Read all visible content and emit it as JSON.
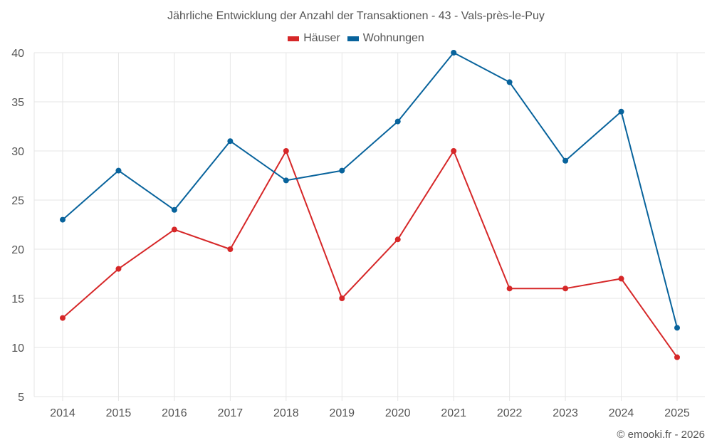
{
  "title": "Jährliche Entwicklung der Anzahl der Transaktionen - 43 - Vals-près-le-Puy",
  "legend": [
    {
      "label": "Häuser",
      "color": "#d62728"
    },
    {
      "label": "Wohnungen",
      "color": "#08639c"
    }
  ],
  "credit": "© emooki.fr - 2026",
  "chart_data": {
    "type": "line",
    "title": "Jährliche Entwicklung der Anzahl der Transaktionen - 43 - Vals-près-le-Puy",
    "xlabel": "",
    "ylabel": "",
    "categories": [
      "2014",
      "2015",
      "2016",
      "2017",
      "2018",
      "2019",
      "2020",
      "2021",
      "2022",
      "2023",
      "2024",
      "2025"
    ],
    "series": [
      {
        "name": "Häuser",
        "color": "#d62728",
        "values": [
          13,
          18,
          22,
          20,
          30,
          15,
          21,
          30,
          16,
          16,
          17,
          9
        ]
      },
      {
        "name": "Wohnungen",
        "color": "#08639c",
        "values": [
          23,
          28,
          24,
          31,
          27,
          28,
          33,
          40,
          37,
          29,
          34,
          12
        ]
      }
    ],
    "ylim": [
      5,
      40
    ],
    "yticks": [
      5,
      10,
      15,
      20,
      25,
      30,
      35,
      40
    ],
    "grid": true,
    "legend_position": "top"
  }
}
